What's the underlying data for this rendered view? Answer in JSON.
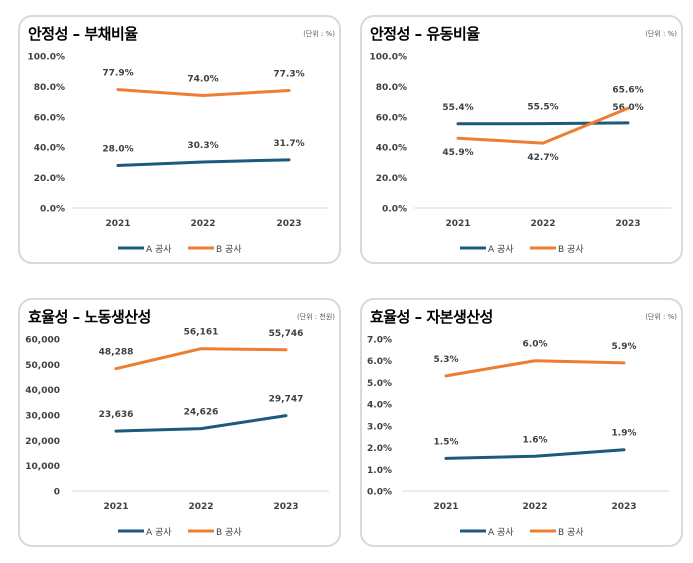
{
  "legend_labels": [
    "A 공사",
    "B 공사"
  ],
  "colors": {
    "A": "#1b5a7a",
    "B": "#ed7d31",
    "grid": "#d9d9d9",
    "text": "#404040"
  },
  "chart_data": [
    {
      "type": "line",
      "title": "안정성 – 부채비율",
      "unit": "(단위 : %)",
      "categories": [
        "2021",
        "2022",
        "2023"
      ],
      "ylim": [
        0,
        100
      ],
      "yticks": [
        "0.0%",
        "20.0%",
        "40.0%",
        "60.0%",
        "80.0%",
        "100.0%"
      ],
      "ytick_values": [
        0,
        20,
        40,
        60,
        80,
        100
      ],
      "legend": "bottom",
      "grid": false,
      "series": [
        {
          "name": "A 공사",
          "values": [
            28.0,
            30.3,
            31.7
          ],
          "labels": [
            "28.0%",
            "30.3%",
            "31.7%"
          ]
        },
        {
          "name": "B 공사",
          "values": [
            77.9,
            74.0,
            77.3
          ],
          "labels": [
            "77.9%",
            "74.0%",
            "77.3%"
          ]
        }
      ]
    },
    {
      "type": "line",
      "title": "안정성 – 유동비율",
      "unit": "(단위 : %)",
      "categories": [
        "2021",
        "2022",
        "2023"
      ],
      "ylim": [
        0,
        100
      ],
      "yticks": [
        "0.0%",
        "20.0%",
        "40.0%",
        "60.0%",
        "80.0%",
        "100.0%"
      ],
      "ytick_values": [
        0,
        20,
        40,
        60,
        80,
        100
      ],
      "legend": "bottom",
      "grid": false,
      "series": [
        {
          "name": "A 공사",
          "values": [
            55.4,
            55.5,
            56.0
          ],
          "labels": [
            "55.4%",
            "55.5%",
            "56.0%"
          ]
        },
        {
          "name": "B 공사",
          "values": [
            45.9,
            42.7,
            65.6
          ],
          "labels": [
            "45.9%",
            "42.7%",
            "65.6%"
          ]
        }
      ]
    },
    {
      "type": "line",
      "title": "효율성 – 노동생산성",
      "unit": "(단위 : 천원)",
      "categories": [
        "2021",
        "2022",
        "2023"
      ],
      "ylim": [
        0,
        60000
      ],
      "yticks": [
        "0",
        "10,000",
        "20,000",
        "30,000",
        "40,000",
        "50,000",
        "60,000"
      ],
      "ytick_values": [
        0,
        10000,
        20000,
        30000,
        40000,
        50000,
        60000
      ],
      "legend": "bottom",
      "grid": false,
      "series": [
        {
          "name": "A 공사",
          "values": [
            23636,
            24626,
            29747
          ],
          "labels": [
            "23,636",
            "24,626",
            "29,747"
          ]
        },
        {
          "name": "B 공사",
          "values": [
            48288,
            56161,
            55746
          ],
          "labels": [
            "48,288",
            "56,161",
            "55,746"
          ]
        }
      ]
    },
    {
      "type": "line",
      "title": "효율성 – 자본생산성",
      "unit": "(단위 : %)",
      "categories": [
        "2021",
        "2022",
        "2023"
      ],
      "ylim": [
        0,
        7
      ],
      "yticks": [
        "0.0%",
        "1.0%",
        "2.0%",
        "3.0%",
        "4.0%",
        "5.0%",
        "6.0%",
        "7.0%"
      ],
      "ytick_values": [
        0,
        1,
        2,
        3,
        4,
        5,
        6,
        7
      ],
      "legend": "bottom",
      "grid": false,
      "series": [
        {
          "name": "A 공사",
          "values": [
            1.5,
            1.6,
            1.9
          ],
          "labels": [
            "1.5%",
            "1.6%",
            "1.9%"
          ]
        },
        {
          "name": "B 공사",
          "values": [
            5.3,
            6.0,
            5.9
          ],
          "labels": [
            "5.3%",
            "6.0%",
            "5.9%"
          ]
        }
      ]
    }
  ]
}
